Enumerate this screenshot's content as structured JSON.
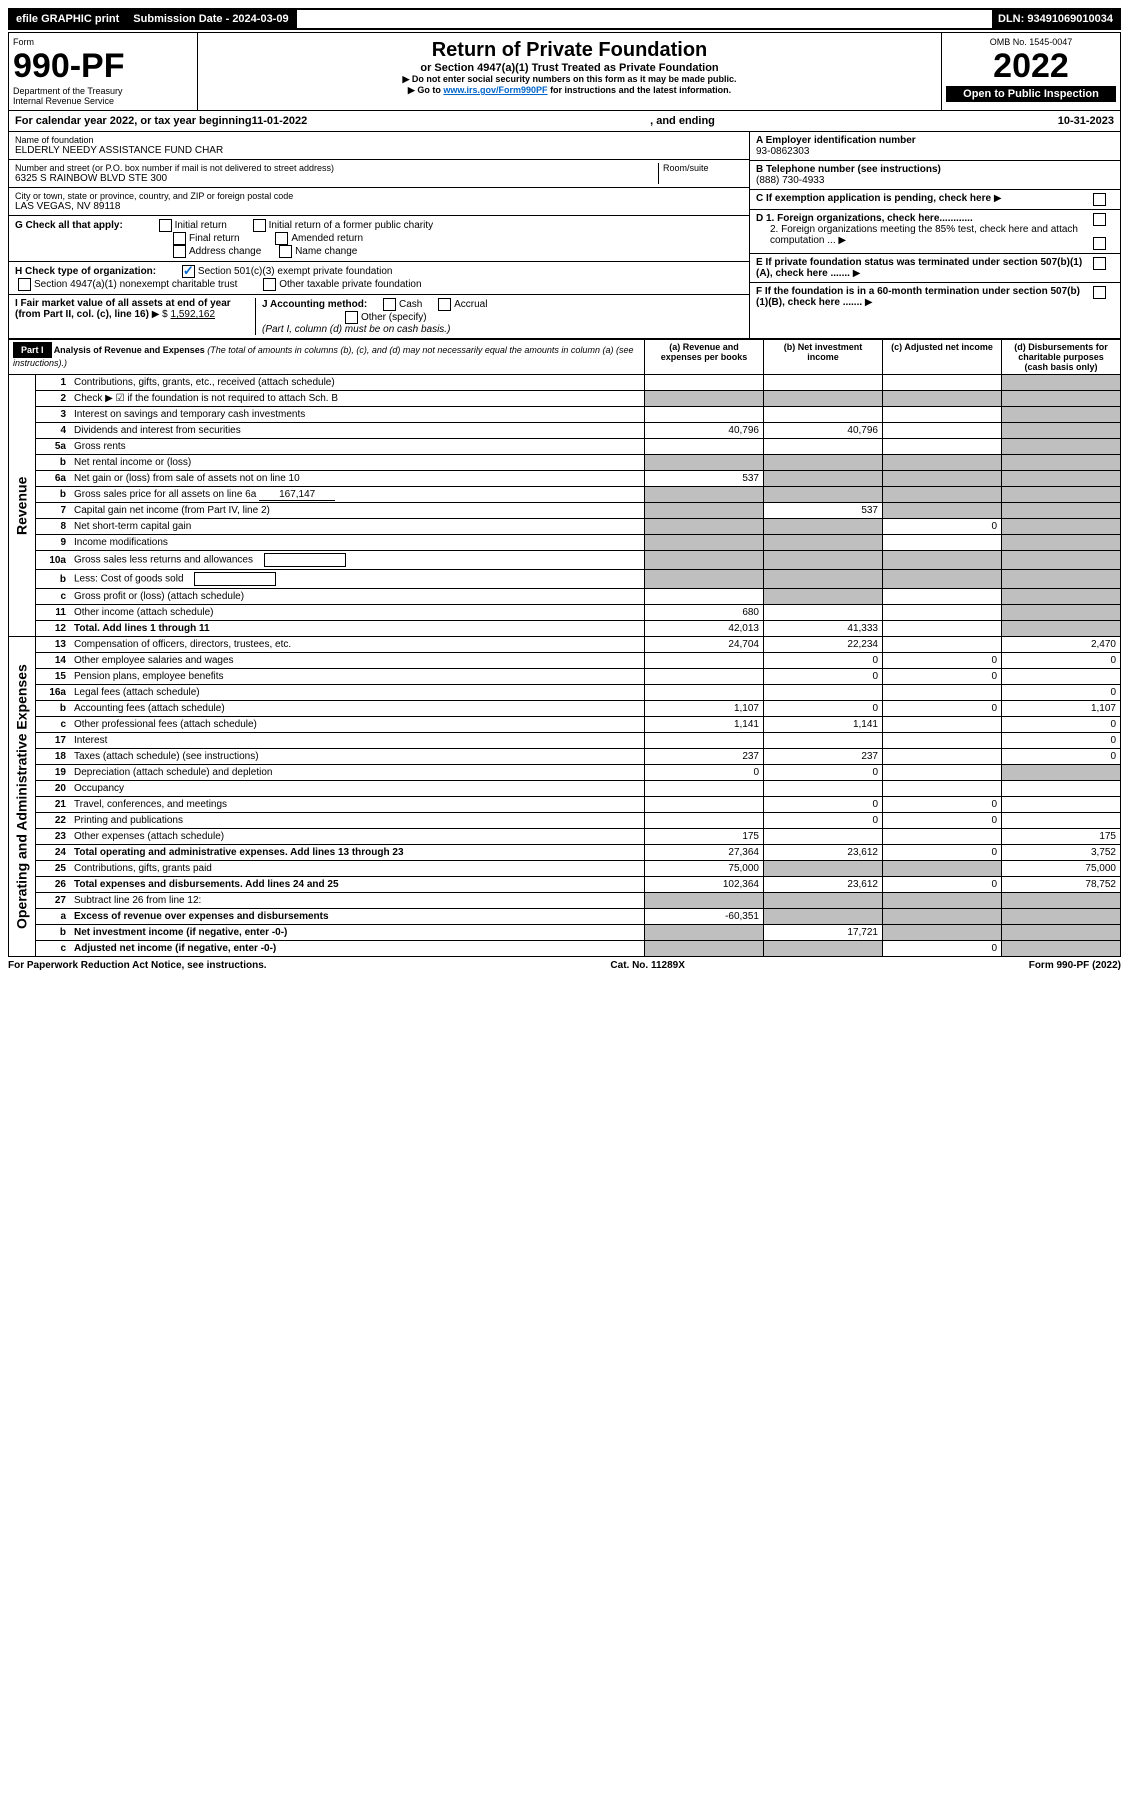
{
  "topbar": {
    "efile": "efile GRAPHIC print",
    "submission_label": "Submission Date - 2024-03-09",
    "dln": "DLN: 93491069010034"
  },
  "header": {
    "form_label": "Form",
    "form_number": "990-PF",
    "dept": "Department of the Treasury",
    "irs": "Internal Revenue Service",
    "title": "Return of Private Foundation",
    "subtitle": "or Section 4947(a)(1) Trust Treated as Private Foundation",
    "note1": "▶ Do not enter social security numbers on this form as it may be made public.",
    "note2_pre": "▶ Go to ",
    "note2_link": "www.irs.gov/Form990PF",
    "note2_post": " for instructions and the latest information.",
    "omb": "OMB No. 1545-0047",
    "year": "2022",
    "open_public": "Open to Public Inspection"
  },
  "calendar": {
    "text_pre": "For calendar year 2022, or tax year beginning ",
    "begin": "11-01-2022",
    "mid": " , and ending ",
    "end": "10-31-2023"
  },
  "foundation": {
    "name_label": "Name of foundation",
    "name": "ELDERLY NEEDY ASSISTANCE FUND CHAR",
    "addr_label": "Number and street (or P.O. box number if mail is not delivered to street address)",
    "room_label": "Room/suite",
    "addr": "6325 S RAINBOW BLVD STE 300",
    "city_label": "City or town, state or province, country, and ZIP or foreign postal code",
    "city": "LAS VEGAS, NV  89118",
    "ein_label": "A Employer identification number",
    "ein": "93-0862303",
    "phone_label": "B Telephone number (see instructions)",
    "phone": "(888) 730-4933",
    "c_label": "C If exemption application is pending, check here",
    "d1_label": "D 1. Foreign organizations, check here............",
    "d2_label": "2. Foreign organizations meeting the 85% test, check here and attach computation ...",
    "e_label": "E If private foundation status was terminated under section 507(b)(1)(A), check here .......",
    "f_label": "F If the foundation is in a 60-month termination under section 507(b)(1)(B), check here .......",
    "g_label": "G Check all that apply:",
    "g_initial": "Initial return",
    "g_initial_former": "Initial return of a former public charity",
    "g_final": "Final return",
    "g_amended": "Amended return",
    "g_address": "Address change",
    "g_name": "Name change",
    "h_label": "H Check type of organization:",
    "h_501c3": "Section 501(c)(3) exempt private foundation",
    "h_4947": "Section 4947(a)(1) nonexempt charitable trust",
    "h_other": "Other taxable private foundation",
    "i_label": "I Fair market value of all assets at end of year (from Part II, col. (c), line 16) ",
    "i_prefix": "▶ $",
    "i_value": "1,592,162",
    "j_label": "J Accounting method:",
    "j_cash": "Cash",
    "j_accrual": "Accrual",
    "j_other": "Other (specify)",
    "j_note": "(Part I, column (d) must be on cash basis.)"
  },
  "part1": {
    "label": "Part I",
    "title": "Analysis of Revenue and Expenses",
    "title_note": " (The total of amounts in columns (b), (c), and (d) may not necessarily equal the amounts in column (a) (see instructions).)",
    "col_a": "(a) Revenue and expenses per books",
    "col_b": "(b) Net investment income",
    "col_c": "(c) Adjusted net income",
    "col_d": "(d) Disbursements for charitable purposes (cash basis only)",
    "revenue_label": "Revenue",
    "expenses_label": "Operating and Administrative Expenses"
  },
  "rows": [
    {
      "n": "1",
      "desc": "Contributions, gifts, grants, etc., received (attach schedule)",
      "a": "",
      "b": "",
      "c": "",
      "d": "",
      "shade_d": true
    },
    {
      "n": "2",
      "desc": "Check ▶ ☑ if the foundation is not required to attach Sch. B",
      "dots": true,
      "d": "",
      "shade_d": true,
      "shade_b": true,
      "shade_c": true,
      "shade_a": true
    },
    {
      "n": "3",
      "desc": "Interest on savings and temporary cash investments",
      "a": "",
      "b": "",
      "c": "",
      "d": "",
      "shade_d": true
    },
    {
      "n": "4",
      "desc": "Dividends and interest from securities",
      "dots": true,
      "a": "40,796",
      "b": "40,796",
      "c": "",
      "d": "",
      "shade_d": true
    },
    {
      "n": "5a",
      "desc": "Gross rents",
      "dots": true,
      "a": "",
      "b": "",
      "c": "",
      "d": "",
      "shade_d": true
    },
    {
      "n": "b",
      "desc": "Net rental income or (loss)",
      "underline_after": true,
      "shade_a": true,
      "shade_b": true,
      "shade_c": true,
      "shade_d": true
    },
    {
      "n": "6a",
      "desc": "Net gain or (loss) from sale of assets not on line 10",
      "a": "537",
      "shade_b": true,
      "shade_c": true,
      "shade_d": true
    },
    {
      "n": "b",
      "desc": "Gross sales price for all assets on line 6a",
      "inline_val": "167,147",
      "shade_a": true,
      "shade_b": true,
      "shade_c": true,
      "shade_d": true
    },
    {
      "n": "7",
      "desc": "Capital gain net income (from Part IV, line 2)",
      "dots": true,
      "shade_a": true,
      "b": "537",
      "shade_c": true,
      "shade_d": true
    },
    {
      "n": "8",
      "desc": "Net short-term capital gain",
      "dots": true,
      "shade_a": true,
      "shade_b": true,
      "c": "0",
      "shade_d": true
    },
    {
      "n": "9",
      "desc": "Income modifications",
      "dots": true,
      "shade_a": true,
      "shade_b": true,
      "c": "",
      "shade_d": true
    },
    {
      "n": "10a",
      "desc": "Gross sales less returns and allowances",
      "inline_box": true,
      "shade_a": true,
      "shade_b": true,
      "shade_c": true,
      "shade_d": true
    },
    {
      "n": "b",
      "desc": "Less: Cost of goods sold",
      "dots": true,
      "inline_box": true,
      "shade_a": true,
      "shade_b": true,
      "shade_c": true,
      "shade_d": true
    },
    {
      "n": "c",
      "desc": "Gross profit or (loss) (attach schedule)",
      "dots": true,
      "a": "",
      "shade_b": true,
      "c": "",
      "shade_d": true
    },
    {
      "n": "11",
      "desc": "Other income (attach schedule)",
      "dots": true,
      "a": "680",
      "b": "",
      "c": "",
      "shade_d": true
    },
    {
      "n": "12",
      "desc": "Total. Add lines 1 through 11",
      "bold": true,
      "dots": true,
      "a": "42,013",
      "b": "41,333",
      "c": "",
      "shade_d": true
    },
    {
      "n": "13",
      "desc": "Compensation of officers, directors, trustees, etc.",
      "a": "24,704",
      "b": "22,234",
      "c": "",
      "d": "2,470"
    },
    {
      "n": "14",
      "desc": "Other employee salaries and wages",
      "dots": true,
      "a": "",
      "b": "0",
      "c": "0",
      "d": "0"
    },
    {
      "n": "15",
      "desc": "Pension plans, employee benefits",
      "dots": true,
      "a": "",
      "b": "0",
      "c": "0",
      "d": ""
    },
    {
      "n": "16a",
      "desc": "Legal fees (attach schedule)",
      "dots": true,
      "a": "",
      "b": "",
      "c": "",
      "d": "0"
    },
    {
      "n": "b",
      "desc": "Accounting fees (attach schedule)",
      "dots": true,
      "a": "1,107",
      "b": "0",
      "c": "0",
      "d": "1,107"
    },
    {
      "n": "c",
      "desc": "Other professional fees (attach schedule)",
      "dots": true,
      "a": "1,141",
      "b": "1,141",
      "c": "",
      "d": "0"
    },
    {
      "n": "17",
      "desc": "Interest",
      "dots": true,
      "a": "",
      "b": "",
      "c": "",
      "d": "0"
    },
    {
      "n": "18",
      "desc": "Taxes (attach schedule) (see instructions)",
      "dots": true,
      "a": "237",
      "b": "237",
      "c": "",
      "d": "0"
    },
    {
      "n": "19",
      "desc": "Depreciation (attach schedule) and depletion",
      "dots": true,
      "a": "0",
      "b": "0",
      "c": "",
      "shade_d": true
    },
    {
      "n": "20",
      "desc": "Occupancy",
      "dots": true,
      "a": "",
      "b": "",
      "c": "",
      "d": ""
    },
    {
      "n": "21",
      "desc": "Travel, conferences, and meetings",
      "dots": true,
      "a": "",
      "b": "0",
      "c": "0",
      "d": ""
    },
    {
      "n": "22",
      "desc": "Printing and publications",
      "dots": true,
      "a": "",
      "b": "0",
      "c": "0",
      "d": ""
    },
    {
      "n": "23",
      "desc": "Other expenses (attach schedule)",
      "dots": true,
      "a": "175",
      "b": "",
      "c": "",
      "d": "175"
    },
    {
      "n": "24",
      "desc": "Total operating and administrative expenses. Add lines 13 through 23",
      "bold": true,
      "dots": true,
      "a": "27,364",
      "b": "23,612",
      "c": "0",
      "d": "3,752"
    },
    {
      "n": "25",
      "desc": "Contributions, gifts, grants paid",
      "dots": true,
      "a": "75,000",
      "shade_b": true,
      "shade_c": true,
      "d": "75,000"
    },
    {
      "n": "26",
      "desc": "Total expenses and disbursements. Add lines 24 and 25",
      "bold": true,
      "a": "102,364",
      "b": "23,612",
      "c": "0",
      "d": "78,752"
    },
    {
      "n": "27",
      "desc": "Subtract line 26 from line 12:",
      "shade_a": true,
      "shade_b": true,
      "shade_c": true,
      "shade_d": true
    },
    {
      "n": "a",
      "desc": "Excess of revenue over expenses and disbursements",
      "bold": true,
      "a": "-60,351",
      "shade_b": true,
      "shade_c": true,
      "shade_d": true
    },
    {
      "n": "b",
      "desc": "Net investment income (if negative, enter -0-)",
      "bold": true,
      "shade_a": true,
      "b": "17,721",
      "shade_c": true,
      "shade_d": true
    },
    {
      "n": "c",
      "desc": "Adjusted net income (if negative, enter -0-)",
      "bold": true,
      "dots": true,
      "shade_a": true,
      "shade_b": true,
      "c": "0",
      "shade_d": true
    }
  ],
  "footer": {
    "left": "For Paperwork Reduction Act Notice, see instructions.",
    "mid": "Cat. No. 11289X",
    "right": "Form 990-PF (2022)"
  },
  "colors": {
    "shade": "#bfbfbf",
    "link": "#0066cc"
  }
}
